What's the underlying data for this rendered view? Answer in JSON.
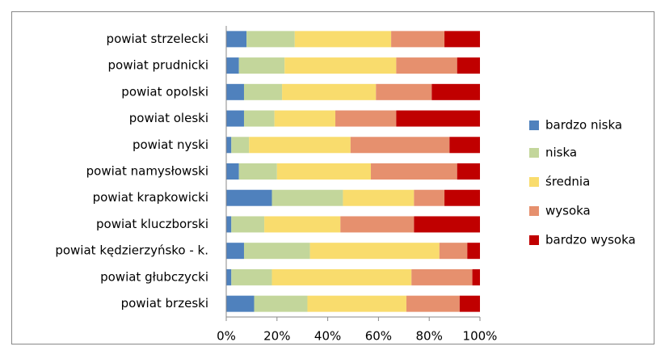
{
  "chart_data": {
    "type": "bar",
    "orientation": "horizontal",
    "stacked": true,
    "categories": [
      "powiat strzelecki",
      "powiat prudnicki",
      "powiat opolski",
      "powiat oleski",
      "powiat nyski",
      "powiat namysłowski",
      "powiat krapkowicki",
      "powiat kluczborski",
      "powiat kędzierzyńsko - k.",
      "powiat głubczycki",
      "powiat brzeski"
    ],
    "series": [
      {
        "name": "bardzo niska",
        "color": "#4f81bd",
        "values": [
          8,
          5,
          7,
          7,
          2,
          5,
          18,
          2,
          7,
          2,
          11
        ]
      },
      {
        "name": "niska",
        "color": "#c3d69b",
        "values": [
          19,
          18,
          15,
          12,
          7,
          15,
          28,
          13,
          26,
          16,
          21
        ]
      },
      {
        "name": "średnia",
        "color": "#f9dc6d",
        "values": [
          38,
          44,
          37,
          24,
          40,
          37,
          28,
          30,
          51,
          55,
          39
        ]
      },
      {
        "name": "wysoka",
        "color": "#e6906e",
        "values": [
          21,
          24,
          22,
          24,
          39,
          34,
          12,
          29,
          11,
          24,
          21
        ]
      },
      {
        "name": "bardzo wysoka",
        "color": "#c00000",
        "values": [
          14,
          9,
          19,
          33,
          12,
          9,
          14,
          26,
          5,
          3,
          8
        ]
      }
    ],
    "xlim": [
      0,
      100
    ],
    "xticks": [
      {
        "value": 0,
        "label": "0%"
      },
      {
        "value": 20,
        "label": "20%"
      },
      {
        "value": 40,
        "label": "40%"
      },
      {
        "value": 60,
        "label": "60%"
      },
      {
        "value": 80,
        "label": "80%"
      },
      {
        "value": 100,
        "label": "100%"
      }
    ],
    "grid": false,
    "legend": "right"
  }
}
